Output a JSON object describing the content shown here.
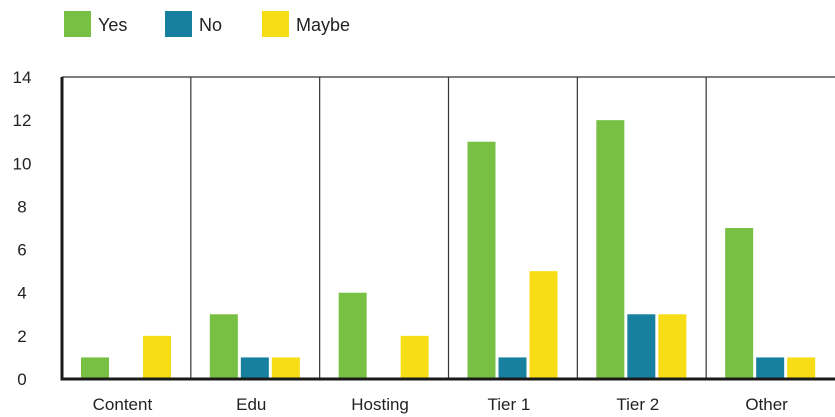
{
  "chart_data": {
    "type": "bar",
    "title": "",
    "xlabel": "",
    "ylabel": "",
    "categories": [
      "Content",
      "Edu",
      "Hosting",
      "Tier 1",
      "Tier 2",
      "Other"
    ],
    "series": [
      {
        "name": "Yes",
        "color": "#77c043",
        "values": [
          1,
          3,
          4,
          11,
          12,
          7
        ]
      },
      {
        "name": "No",
        "color": "#17809e",
        "values": [
          0,
          1,
          0,
          1,
          3,
          1
        ]
      },
      {
        "name": "Maybe",
        "color": "#f7dd16",
        "values": [
          2,
          1,
          2,
          5,
          3,
          1
        ]
      }
    ],
    "ylim": [
      0,
      14
    ],
    "yticks": [
      0,
      2,
      4,
      6,
      8,
      10,
      12,
      14
    ],
    "grid": "vertical category dividers",
    "legend": "top-left"
  }
}
